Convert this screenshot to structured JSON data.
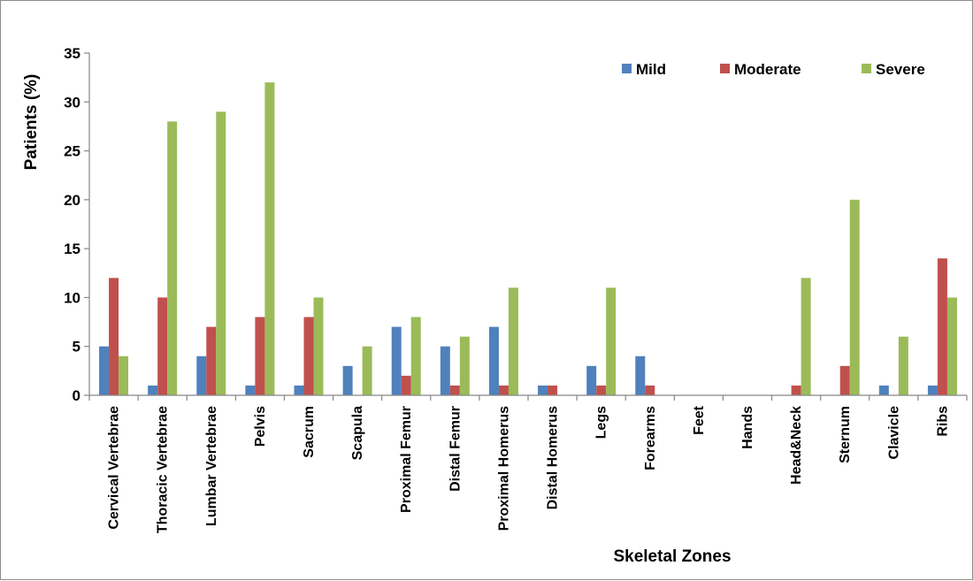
{
  "chart_data": {
    "type": "bar",
    "title": "",
    "xlabel": "Skeletal Zones",
    "ylabel": "Patients (%)",
    "ylim": [
      0,
      35
    ],
    "yticks": [
      0,
      5,
      10,
      15,
      20,
      25,
      30,
      35
    ],
    "grid": false,
    "legend_position": "top-right",
    "categories": [
      "Cervical Vertebrae",
      "Thoracic Vertebrae",
      "Lumbar Vertebrae",
      "Pelvis",
      "Sacrum",
      "Scapula",
      "Proximal Femur",
      "Distal Femur",
      "Proximal Homerus",
      "Distal Homerus",
      "Legs",
      "Forearms",
      "Feet",
      "Hands",
      "Head&Neck",
      "Sternum",
      "Clavicle",
      "Ribs"
    ],
    "series": [
      {
        "name": "Mild",
        "color": "#4f81bd",
        "values": [
          5,
          1,
          4,
          1,
          1,
          3,
          7,
          5,
          7,
          1,
          3,
          4,
          0,
          0,
          0,
          0,
          1,
          1
        ]
      },
      {
        "name": "Moderate",
        "color": "#c0504d",
        "values": [
          12,
          10,
          7,
          8,
          8,
          0,
          2,
          1,
          1,
          1,
          1,
          1,
          0,
          0,
          1,
          3,
          0,
          14
        ]
      },
      {
        "name": "Severe",
        "color": "#9bbb59",
        "values": [
          4,
          28,
          29,
          32,
          10,
          5,
          8,
          6,
          11,
          0,
          11,
          0,
          0,
          0,
          12,
          20,
          6,
          10
        ]
      }
    ]
  }
}
